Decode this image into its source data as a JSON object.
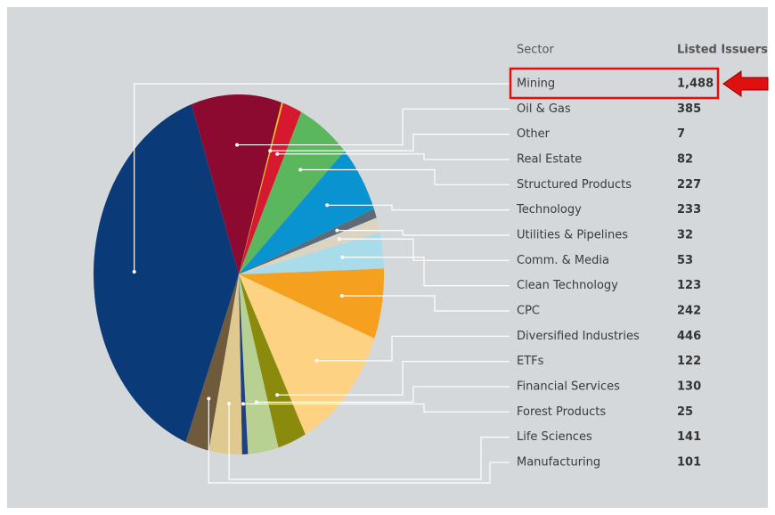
{
  "chart_data": {
    "type": "pie",
    "label_header": "Sector",
    "value_header": "Listed Issuers",
    "categories": [
      "Mining",
      "Oil & Gas",
      "Other",
      "Real Estate",
      "Structured Products",
      "Technology",
      "Utilities & Pipelines",
      "Comm. & Media",
      "Clean Technology",
      "CPC",
      "Diversified Industries",
      "ETFs",
      "Financial Services",
      "Forest Products",
      "Life Sciences",
      "Manufacturing"
    ],
    "values": [
      1488,
      385,
      7,
      82,
      227,
      233,
      32,
      53,
      123,
      242,
      446,
      122,
      130,
      25,
      141,
      101
    ],
    "value_labels": [
      "1,488",
      "385",
      "7",
      "82",
      "227",
      "233",
      "32",
      "53",
      "123",
      "242",
      "446",
      "122",
      "130",
      "25",
      "141",
      "101"
    ],
    "colors": [
      "#0b3a78",
      "#8c0a30",
      "#f2c21b",
      "#d7192f",
      "#5bb75e",
      "#0a93d1",
      "#5d6b78",
      "#dcd4c2",
      "#a9dcea",
      "#f5a11f",
      "#fdd283",
      "#8a8b0d",
      "#b8d193",
      "#1f3f86",
      "#e0c98f",
      "#6f5b3b"
    ]
  }
}
